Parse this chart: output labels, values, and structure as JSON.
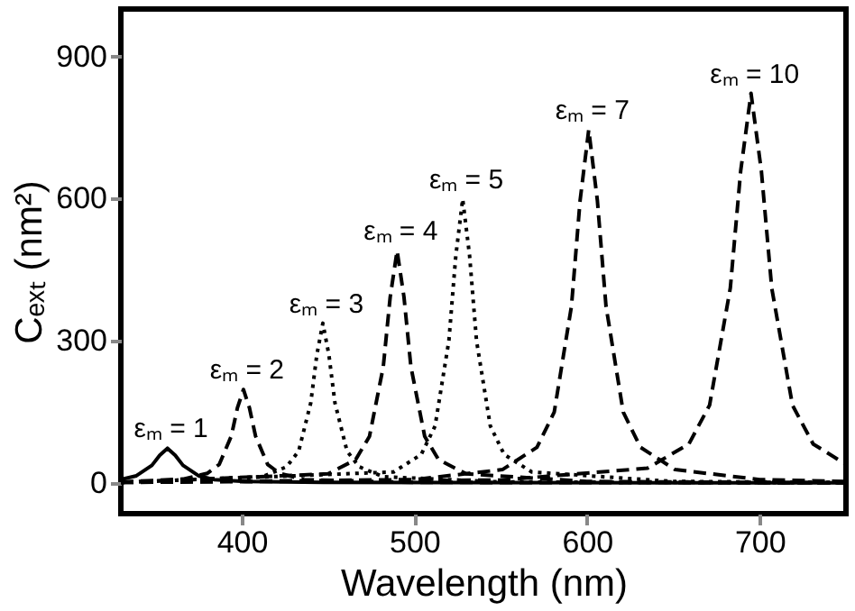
{
  "chart_data": {
    "type": "line",
    "xlabel": "Wavelength (nm)",
    "ylabel": "Cₑₓₜ (nm²)",
    "xlim": [
      330,
      750
    ],
    "ylim": [
      -65,
      1000
    ],
    "xticks": [
      400,
      500,
      600,
      700
    ],
    "yticks": [
      0,
      300,
      600,
      900
    ],
    "grid": false,
    "marker": "none",
    "series": [
      {
        "name": "εₘ = 1",
        "color": "#000000",
        "line_style": "solid",
        "x": [
          330,
          339,
          348,
          352.5,
          357,
          361.5,
          366,
          375,
          384,
          402,
          447,
          750
        ],
        "values": [
          7,
          15,
          37,
          58,
          73,
          58,
          37,
          15,
          7,
          3,
          1,
          0
        ]
      },
      {
        "name": "εₘ = 2",
        "color": "#000000",
        "line_style": "dashed",
        "x": [
          330,
          366,
          380,
          387,
          394,
          397.5,
          401,
          404.5,
          408,
          415,
          422,
          436,
          500,
          750
        ],
        "values": [
          2,
          8,
          20,
          39,
          99,
          158,
          197,
          158,
          99,
          39,
          20,
          7,
          1,
          0
        ]
      },
      {
        "name": "εₘ = 3",
        "color": "#000000",
        "line_style": "dotted",
        "x": [
          330,
          412,
          426,
          433,
          440,
          443.5,
          447,
          450.5,
          454,
          461,
          468,
          482,
          550,
          750
        ],
        "values": [
          1,
          13,
          34,
          67,
          169,
          270,
          337,
          270,
          169,
          67,
          34,
          13,
          2,
          0
        ]
      },
      {
        "name": "εₘ = 4",
        "color": "#000000",
        "line_style": "dashed",
        "x": [
          330,
          450,
          466,
          474,
          482,
          486,
          490,
          494,
          498,
          506,
          514,
          530,
          600,
          750
        ],
        "values": [
          1,
          19,
          49,
          98,
          245,
          392,
          490,
          392,
          245,
          98,
          49,
          19,
          3,
          0
        ]
      },
      {
        "name": "εₘ = 5",
        "color": "#000000",
        "line_style": "dotted",
        "x": [
          330,
          488,
          504,
          512,
          520,
          524,
          528,
          532,
          536,
          544,
          552,
          568,
          650,
          750
        ],
        "values": [
          1,
          23,
          60,
          120,
          300,
          479,
          599,
          479,
          300,
          120,
          60,
          23,
          3,
          1
        ]
      },
      {
        "name": "εₘ = 7",
        "color": "#000000",
        "line_style": "dashed",
        "x": [
          330,
          500,
          551,
          571,
          581,
          591,
          596,
          601,
          606,
          611,
          621,
          631,
          651,
          700,
          750
        ],
        "values": [
          1,
          7,
          28,
          75,
          149,
          373,
          596,
          745,
          596,
          373,
          149,
          75,
          28,
          7,
          3
        ]
      },
      {
        "name": "εₘ = 10",
        "color": "#000000",
        "line_style": "dashed",
        "x": [
          330,
          550,
          635,
          659,
          671,
          683,
          689,
          695,
          701,
          707,
          719,
          731,
          750
        ],
        "values": [
          1,
          6,
          31,
          82,
          164,
          411,
          658,
          822,
          658,
          411,
          164,
          82,
          39
        ]
      }
    ]
  }
}
